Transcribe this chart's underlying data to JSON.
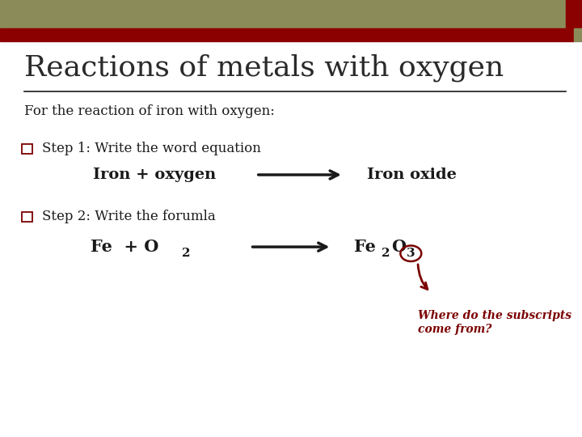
{
  "title": "Reactions of metals with oxygen",
  "subtitle": "For the reaction of iron with oxygen:",
  "step1_label": "Step 1: Write the word equation",
  "step1_left": "Iron + oxygen",
  "step1_right": "Iron oxide",
  "step2_label": "Step 2: Write the forumla",
  "annotation": "Where do the subscripts\ncome from?",
  "bg_color": "#ffffff",
  "header_bar_olive": "#8B8B5A",
  "header_bar_red": "#8B0000",
  "title_color": "#2a2a2a",
  "text_color": "#1a1a1a",
  "accent_color": "#7B0000",
  "line_color": "#1a1a1a"
}
